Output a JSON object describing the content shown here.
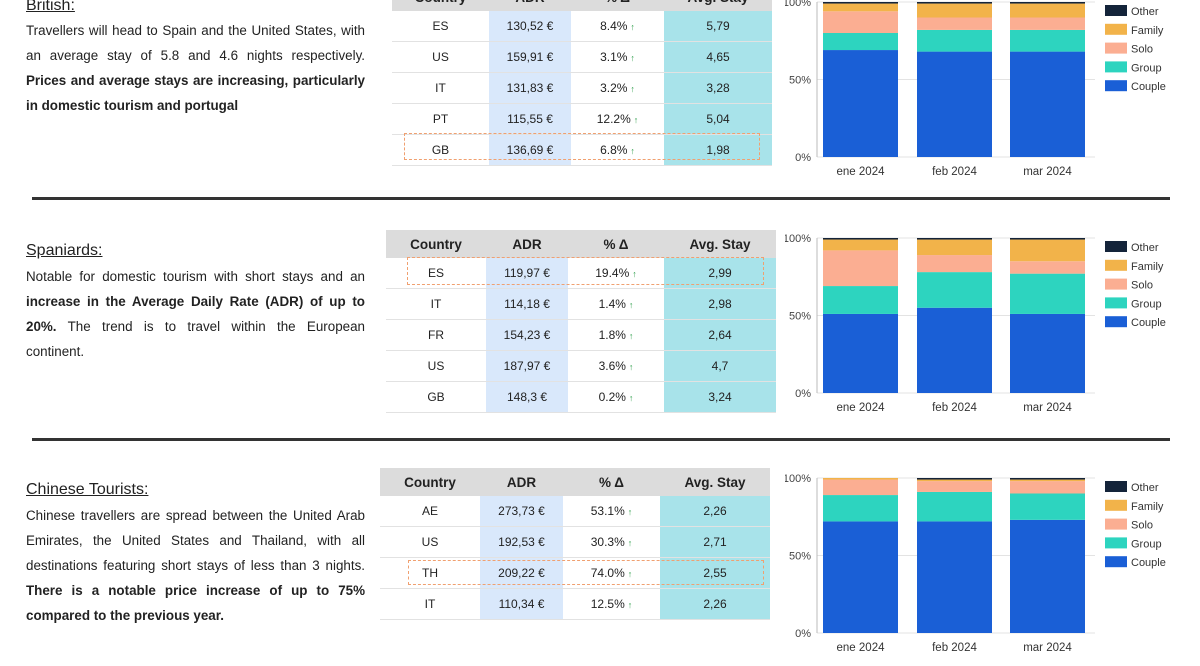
{
  "table_headers": {
    "country": "Country",
    "adr": "ADR",
    "pct": "% Δ",
    "stay": "Avg. Stay"
  },
  "sections": [
    {
      "heading": "British:",
      "text_normal": "Travellers will head to Spain and the United States, with an average stay of 5.8 and 4.6 nights respectively. ",
      "text_bold": "Prices and average stays are increasing, particularly in domestic tourism and portugal",
      "text_normal2": "",
      "rows": [
        {
          "country": "ES",
          "adr": "130,52 €",
          "pct": "8.4%",
          "stay": "5,79"
        },
        {
          "country": "US",
          "adr": "159,91 €",
          "pct": "3.1%",
          "stay": "4,65"
        },
        {
          "country": "IT",
          "adr": "131,83 €",
          "pct": "3.2%",
          "stay": "3,28"
        },
        {
          "country": "PT",
          "adr": "115,55 €",
          "pct": "12.2%",
          "stay": "5,04"
        },
        {
          "country": "GB",
          "adr": "136,69 €",
          "pct": "6.8%",
          "stay": "1,98"
        }
      ],
      "highlight_row": 4
    },
    {
      "heading": "Spaniards:",
      "text_normal": "Notable for domestic tourism with short stays and an ",
      "text_bold": "increase in the Average Daily Rate (ADR) of up to 20%.",
      "text_normal2": " The trend is to travel within the European continent.",
      "rows": [
        {
          "country": "ES",
          "adr": "119,97 €",
          "pct": "19.4%",
          "stay": "2,99"
        },
        {
          "country": "IT",
          "adr": "114,18 €",
          "pct": "1.4%",
          "stay": "2,98"
        },
        {
          "country": "FR",
          "adr": "154,23 €",
          "pct": "1.8%",
          "stay": "2,64"
        },
        {
          "country": "US",
          "adr": "187,97 €",
          "pct": "3.6%",
          "stay": "4,7"
        },
        {
          "country": "GB",
          "adr": "148,3 €",
          "pct": "0.2%",
          "stay": "3,24"
        }
      ],
      "highlight_row": 0
    },
    {
      "heading": "Chinese Tourists:",
      "text_normal": "Chinese travellers are spread between the United Arab Emirates, the United States and Thailand, with all destinations featuring short stays of less than 3 nights. ",
      "text_bold": "There is a notable price increase of up to 75% compared to the previous year.",
      "text_normal2": "",
      "rows": [
        {
          "country": "AE",
          "adr": "273,73 €",
          "pct": "53.1%",
          "stay": "2,26"
        },
        {
          "country": "US",
          "adr": "192,53 €",
          "pct": "30.3%",
          "stay": "2,71"
        },
        {
          "country": "TH",
          "adr": "209,22 €",
          "pct": "74.0%",
          "stay": "2,55"
        },
        {
          "country": "IT",
          "adr": "110,34 €",
          "pct": "12.5%",
          "stay": "2,26"
        }
      ],
      "highlight_row": 2
    }
  ],
  "chart_data": [
    {
      "type": "bar",
      "stacked": true,
      "categories": [
        "ene 2024",
        "feb 2024",
        "mar 2024"
      ],
      "yticks": [
        "0%",
        "50%",
        "100%"
      ],
      "legend": [
        "Other",
        "Family",
        "Solo",
        "Group",
        "Couple"
      ],
      "colors": {
        "Other": "#14243a",
        "Family": "#f2b34a",
        "Solo": "#fbae92",
        "Group": "#2dd4bf",
        "Couple": "#1a5fd6"
      },
      "series": [
        {
          "name": "Couple",
          "values": [
            69,
            68,
            68
          ]
        },
        {
          "name": "Group",
          "values": [
            11,
            14,
            14
          ]
        },
        {
          "name": "Solo",
          "values": [
            14,
            8,
            8
          ]
        },
        {
          "name": "Family",
          "values": [
            5,
            9,
            9
          ]
        },
        {
          "name": "Other",
          "values": [
            1,
            1,
            1
          ]
        }
      ]
    },
    {
      "type": "bar",
      "stacked": true,
      "categories": [
        "ene 2024",
        "feb 2024",
        "mar 2024"
      ],
      "yticks": [
        "0%",
        "50%",
        "100%"
      ],
      "legend": [
        "Other",
        "Family",
        "Solo",
        "Group",
        "Couple"
      ],
      "colors": {
        "Other": "#14243a",
        "Family": "#f2b34a",
        "Solo": "#fbae92",
        "Group": "#2dd4bf",
        "Couple": "#1a5fd6"
      },
      "series": [
        {
          "name": "Couple",
          "values": [
            51,
            55,
            51
          ]
        },
        {
          "name": "Group",
          "values": [
            18,
            23,
            26
          ]
        },
        {
          "name": "Solo",
          "values": [
            23,
            11,
            8
          ]
        },
        {
          "name": "Family",
          "values": [
            7,
            10,
            14
          ]
        },
        {
          "name": "Other",
          "values": [
            1,
            1,
            1
          ]
        }
      ]
    },
    {
      "type": "bar",
      "stacked": true,
      "categories": [
        "ene 2024",
        "feb 2024",
        "mar 2024"
      ],
      "yticks": [
        "0%",
        "50%",
        "100%"
      ],
      "legend": [
        "Other",
        "Family",
        "Solo",
        "Group",
        "Couple"
      ],
      "colors": {
        "Other": "#14243a",
        "Family": "#f2b34a",
        "Solo": "#fbae92",
        "Group": "#2dd4bf",
        "Couple": "#1a5fd6"
      },
      "series": [
        {
          "name": "Couple",
          "values": [
            72,
            72,
            73
          ]
        },
        {
          "name": "Group",
          "values": [
            17,
            19,
            17
          ]
        },
        {
          "name": "Solo",
          "values": [
            10,
            7,
            8
          ]
        },
        {
          "name": "Family",
          "values": [
            1,
            1,
            1
          ]
        },
        {
          "name": "Other",
          "values": [
            0,
            1,
            1
          ]
        }
      ]
    }
  ]
}
